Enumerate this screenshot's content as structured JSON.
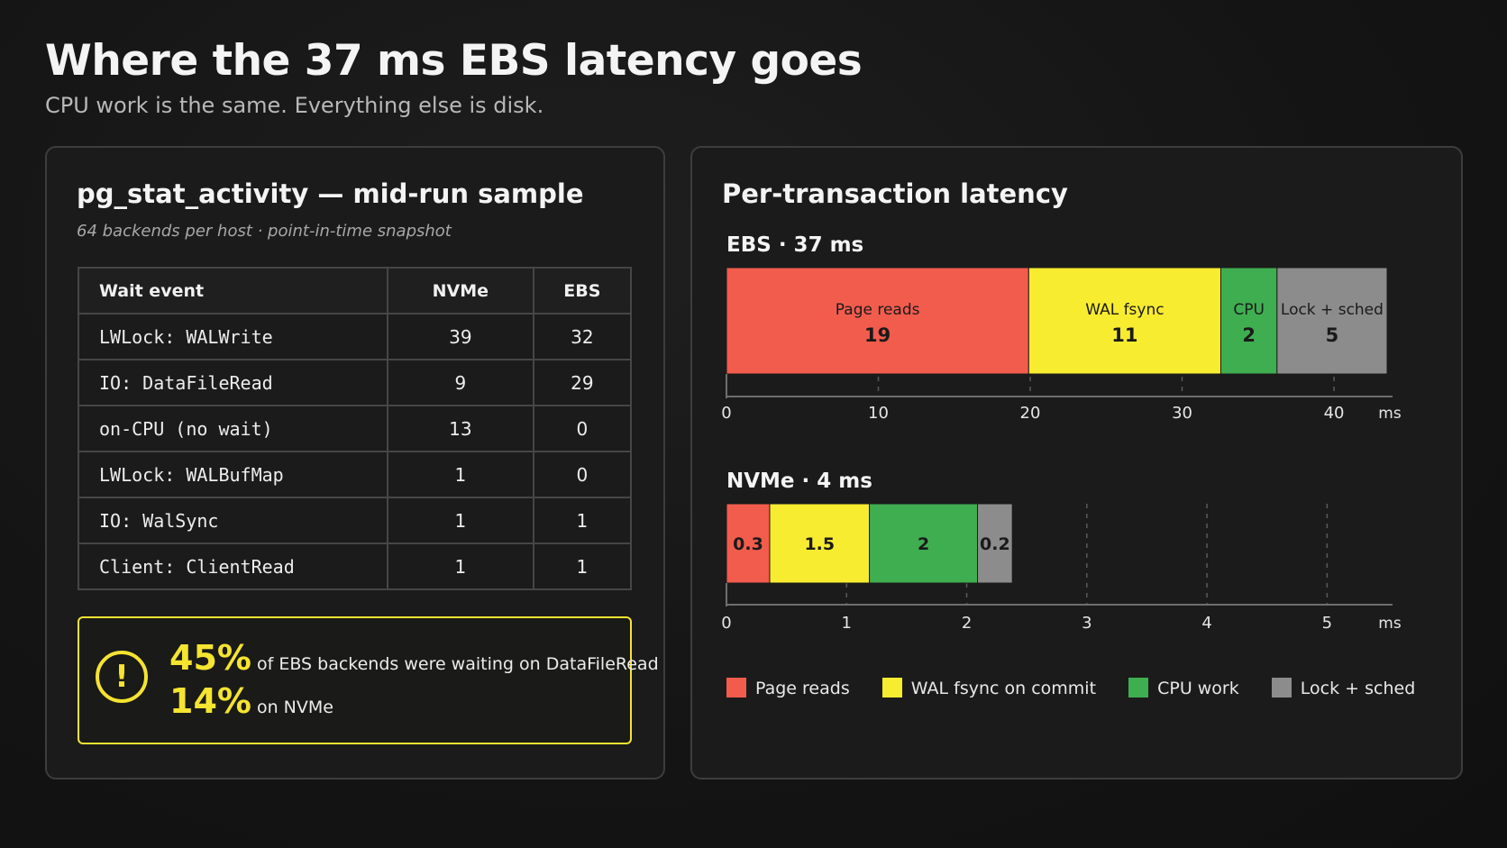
{
  "header": {
    "title": "Where the 37 ms EBS latency goes",
    "subtitle": "CPU work is the same. Everything else is disk."
  },
  "left_panel": {
    "title": "pg_stat_activity — mid-run sample",
    "caption": "64 backends per host  ·  point-in-time snapshot",
    "table": {
      "headers": [
        "Wait event",
        "NVMe",
        "EBS"
      ],
      "rows": [
        {
          "event": "LWLock: WALWrite",
          "nvme": "39",
          "ebs": "32"
        },
        {
          "event": "IO: DataFileRead",
          "nvme": "9",
          "ebs": "29"
        },
        {
          "event": "on-CPU (no wait)",
          "nvme": "13",
          "ebs": "0"
        },
        {
          "event": "LWLock: WALBufMap",
          "nvme": "1",
          "ebs": "0"
        },
        {
          "event": "IO: WalSync",
          "nvme": "1",
          "ebs": "1"
        },
        {
          "event": "Client: ClientRead",
          "nvme": "1",
          "ebs": "1"
        }
      ]
    },
    "callout": {
      "icon": "warning-circle-icon",
      "line1_value": "45%",
      "line1_text": "of EBS backends were waiting on DataFileRead",
      "line2_value": "14%",
      "line2_text": "on NVMe",
      "color": "#f5e430"
    }
  },
  "right_panel": {
    "title": "Per-transaction latency"
  },
  "chart_data": {
    "type": "bar",
    "orientation": "horizontal-stacked",
    "unit": "ms",
    "bars": [
      {
        "name": "EBS · 37 ms",
        "xlim": [
          0,
          43.5
        ],
        "ticks": [
          0,
          10,
          20,
          30,
          40
        ],
        "segments": [
          {
            "label": "Page reads",
            "value": 19,
            "display": "19",
            "start": 0,
            "end": 19.9
          },
          {
            "label": "WAL fsync",
            "value": 11,
            "display": "11",
            "start": 19.9,
            "end": 32.55
          },
          {
            "label": "CPU",
            "value": 2,
            "display": "2",
            "start": 32.55,
            "end": 36.25
          },
          {
            "label": "Lock + sched",
            "value": 5,
            "display": "5",
            "start": 36.25,
            "end": 43.5
          }
        ]
      },
      {
        "name": "NVMe · 4 ms",
        "xlim": [
          0,
          5.5
        ],
        "ticks": [
          0,
          1,
          2,
          3,
          4,
          5
        ],
        "segments": [
          {
            "label": "",
            "value": 0.3,
            "display": "0.3",
            "start": 0,
            "end": 0.36
          },
          {
            "label": "",
            "value": 1.5,
            "display": "1.5",
            "start": 0.36,
            "end": 1.19
          },
          {
            "label": "",
            "value": 2,
            "display": "2",
            "start": 1.19,
            "end": 2.09
          },
          {
            "label": "",
            "value": 0.2,
            "display": "0.2",
            "start": 2.09,
            "end": 2.38
          }
        ]
      }
    ],
    "legend": [
      {
        "label": "Page reads",
        "color": "#f25c4d"
      },
      {
        "label": "WAL fsync on commit",
        "color": "#f8ec30"
      },
      {
        "label": "CPU work",
        "color": "#3fae50"
      },
      {
        "label": "Lock + sched",
        "color": "#8c8c8c"
      }
    ],
    "colors": [
      "#f25c4d",
      "#f8ec30",
      "#3fae50",
      "#8c8c8c"
    ],
    "legend_position": "bottom"
  }
}
